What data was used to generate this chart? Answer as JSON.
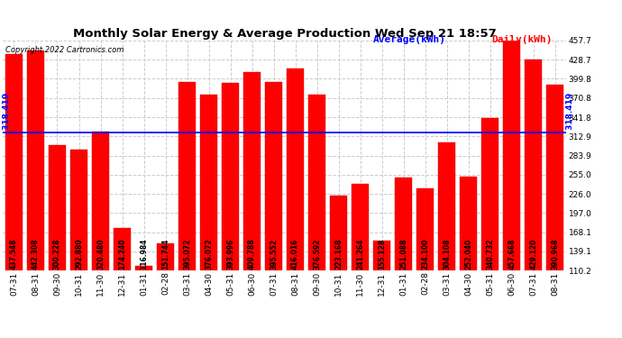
{
  "title": "Monthly Solar Energy & Average Production Wed Sep 21 18:57",
  "copyright": "Copyright 2022 Cartronics.com",
  "legend_average": "Average(kWh)",
  "average_value": 318.419,
  "average_label": "318.419",
  "categories": [
    "07-31",
    "08-31",
    "09-30",
    "10-31",
    "11-30",
    "12-31",
    "01-31",
    "02-28",
    "03-31",
    "04-30",
    "05-31",
    "06-30",
    "07-31",
    "08-31",
    "09-30",
    "10-31",
    "11-30",
    "12-31",
    "01-31",
    "02-28",
    "03-31",
    "04-30",
    "05-31",
    "06-30",
    "07-31",
    "08-31"
  ],
  "values": [
    437.548,
    442.308,
    300.228,
    292.88,
    320.48,
    174.24,
    116.984,
    151.744,
    395.072,
    376.072,
    393.996,
    409.788,
    395.552,
    416.016,
    376.592,
    223.168,
    241.264,
    155.128,
    251.088,
    234.1,
    304.108,
    252.04,
    340.732,
    457.668,
    429.12,
    390.968
  ],
  "bar_labels": [
    "437.548",
    "442.308",
    "300.228",
    "292.880",
    "320.480",
    "174.240",
    "116.984",
    "151.744",
    "395.072",
    "376.072",
    "393.996",
    "409.788",
    "395.552",
    "416.016",
    "376.592",
    "223.168",
    "241.264",
    "155.128",
    "251.088",
    "234.100",
    "304.108",
    "252.040",
    "340.732",
    "457.668",
    "429.120",
    "390.968"
  ],
  "bar_color": "#ff0000",
  "bar_edge_color": "#cc0000",
  "avg_line_color": "#0000ff",
  "background_color": "#ffffff",
  "plot_bg_color": "#ffffff",
  "grid_color": "#cccccc",
  "ymin": 110.2,
  "ymax": 457.7,
  "yticks": [
    110.2,
    139.1,
    168.1,
    197.0,
    226.0,
    255.0,
    283.9,
    312.9,
    341.8,
    370.8,
    399.8,
    428.7,
    457.7
  ],
  "title_fontsize": 9.5,
  "tick_fontsize": 6.5,
  "bar_label_fontsize": 5.5,
  "avg_label_fontsize": 6.5,
  "copyright_fontsize": 6,
  "legend_fontsize": 8
}
